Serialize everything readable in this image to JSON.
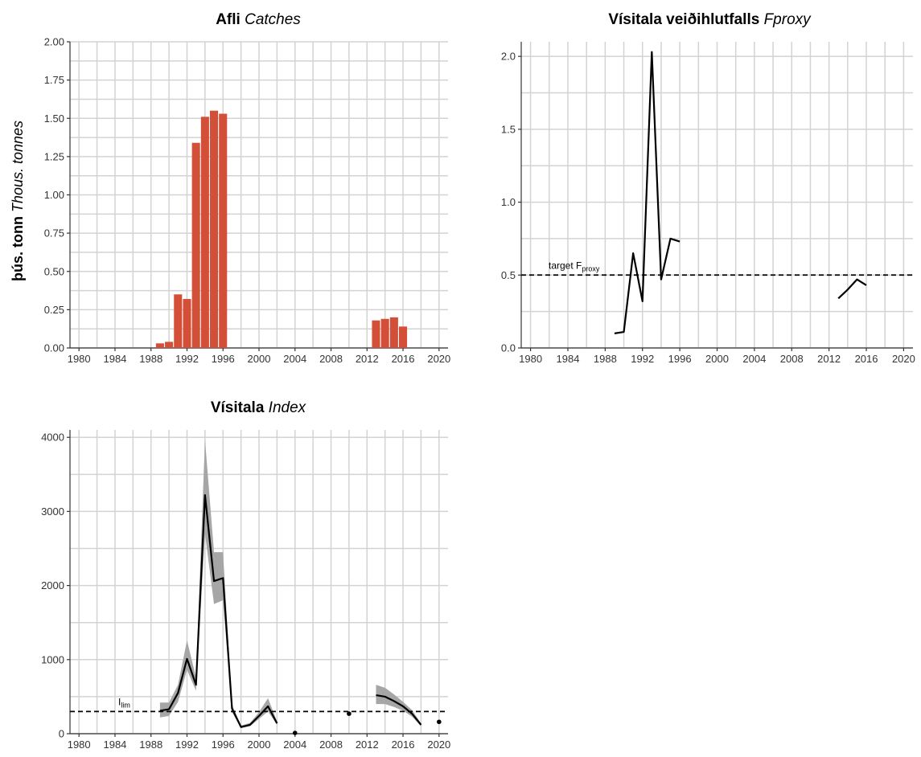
{
  "figure": {
    "ylabel_bold": "þús. tonn",
    "ylabel_italic": "Thous. tonnes"
  },
  "chart_data": [
    {
      "type": "bar",
      "title_bold": "Afli",
      "title_italic": "Catches",
      "ylabel": "þús. tonn Thous. tonnes",
      "xlim": [
        1979,
        2021
      ],
      "ylim": [
        0,
        2.0
      ],
      "xticks": [
        "1980",
        "1984",
        "1988",
        "1992",
        "1996",
        "2000",
        "2004",
        "2008",
        "2012",
        "2016",
        "2020"
      ],
      "yticks": [
        "0.00",
        "0.25",
        "0.50",
        "0.75",
        "1.00",
        "1.25",
        "1.50",
        "1.75",
        "2.00"
      ],
      "bar_color": "#d34f38",
      "x": [
        1989,
        1990,
        1991,
        1992,
        1993,
        1994,
        1995,
        1996,
        2013,
        2014,
        2015,
        2016
      ],
      "values": [
        0.03,
        0.04,
        0.35,
        0.32,
        1.34,
        1.51,
        1.55,
        1.53,
        0.18,
        0.19,
        0.2,
        0.14
      ]
    },
    {
      "type": "line",
      "title_bold": "Vísitala veiðihlutfalls",
      "title_italic": "Fproxy",
      "xlim": [
        1979,
        2021
      ],
      "ylim": [
        0,
        2.1
      ],
      "xticks": [
        "1980",
        "1984",
        "1988",
        "1992",
        "1996",
        "2000",
        "2004",
        "2008",
        "2012",
        "2016",
        "2020"
      ],
      "yticks": [
        "0.0",
        "0.5",
        "1.0",
        "1.5",
        "2.0"
      ],
      "series": [
        {
          "x": [
            1989,
            1990,
            1991,
            1992,
            1993,
            1994,
            1995,
            1996
          ],
          "y": [
            0.1,
            0.11,
            0.65,
            0.32,
            2.03,
            0.47,
            0.75,
            0.73
          ]
        },
        {
          "x": [
            2013,
            2014,
            2015,
            2016
          ],
          "y": [
            0.34,
            0.4,
            0.47,
            0.43
          ]
        }
      ],
      "reference_line": {
        "y": 0.5,
        "label": "target F",
        "label_sub": "proxy"
      }
    },
    {
      "type": "line",
      "title_bold": "Vísitala",
      "title_italic": "Index",
      "xlim": [
        1979,
        2021
      ],
      "ylim": [
        0,
        4100
      ],
      "xticks": [
        "1980",
        "1984",
        "1988",
        "1992",
        "1996",
        "2000",
        "2004",
        "2008",
        "2012",
        "2016",
        "2020"
      ],
      "yticks": [
        "0",
        "1000",
        "2000",
        "3000",
        "4000"
      ],
      "series": [
        {
          "x": [
            1989,
            1990,
            1991,
            1992,
            1993,
            1994,
            1995,
            1996,
            1997,
            1998,
            1999,
            2000,
            2001,
            2002
          ],
          "y": [
            310,
            330,
            550,
            1010,
            660,
            3220,
            2060,
            2100,
            340,
            90,
            120,
            240,
            370,
            140
          ],
          "lower": [
            220,
            240,
            430,
            860,
            580,
            2700,
            1750,
            1800,
            290,
            75,
            100,
            200,
            300,
            120
          ],
          "upper": [
            420,
            420,
            660,
            1260,
            760,
            3970,
            2450,
            2450,
            390,
            110,
            145,
            290,
            480,
            165
          ]
        },
        {
          "x": [
            2013,
            2014,
            2015,
            2016,
            2017,
            2018
          ],
          "y": [
            520,
            500,
            440,
            370,
            270,
            120
          ],
          "lower": [
            400,
            400,
            360,
            310,
            230,
            100
          ],
          "upper": [
            660,
            620,
            530,
            430,
            320,
            140
          ]
        }
      ],
      "points": [
        {
          "x": 2004,
          "y": 10
        },
        {
          "x": 2010,
          "y": 270
        },
        {
          "x": 2020,
          "y": 160
        }
      ],
      "reference_line": {
        "y": 300,
        "label": "I",
        "label_sub": "lim"
      }
    }
  ]
}
